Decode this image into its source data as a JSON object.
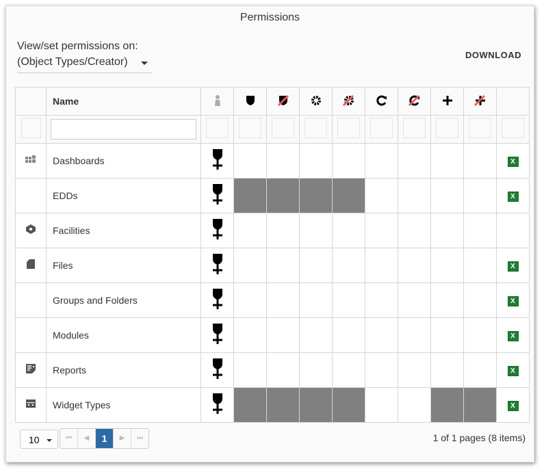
{
  "dialog": {
    "title": "Permissions",
    "view_label": "View/set permissions on:",
    "selected_object": "(Object Types/Creator)",
    "download_label": "DOWNLOAD"
  },
  "table": {
    "name_header": "Name",
    "permission_columns": [
      "creator",
      "view",
      "deny-view",
      "admin",
      "deny-admin",
      "edit",
      "deny-edit",
      "create",
      "deny-create"
    ],
    "rows": [
      {
        "name": "Dashboards",
        "icon": "dashboard-icon",
        "disabled": [],
        "excel": true
      },
      {
        "name": "EDDs",
        "icon": "",
        "disabled": [
          0,
          1,
          2,
          3
        ],
        "excel": true
      },
      {
        "name": "Facilities",
        "icon": "facility-icon",
        "disabled": [],
        "excel": false
      },
      {
        "name": "Files",
        "icon": "file-icon",
        "disabled": [],
        "excel": true
      },
      {
        "name": "Groups and Folders",
        "icon": "",
        "disabled": [],
        "excel": true
      },
      {
        "name": "Modules",
        "icon": "",
        "disabled": [],
        "excel": true
      },
      {
        "name": "Reports",
        "icon": "report-icon",
        "disabled": [],
        "excel": true
      },
      {
        "name": "Widget Types",
        "icon": "widget-icon",
        "disabled": [
          0,
          1,
          2,
          3,
          6,
          7
        ],
        "excel": true
      }
    ]
  },
  "pagination": {
    "page_size": "10",
    "current_page": "1",
    "info": "1 of 1 pages (8 items)"
  },
  "colors": {
    "disabled_cell": "#808080",
    "active_page": "#2c6aa6",
    "slash": "#f05a5a"
  }
}
